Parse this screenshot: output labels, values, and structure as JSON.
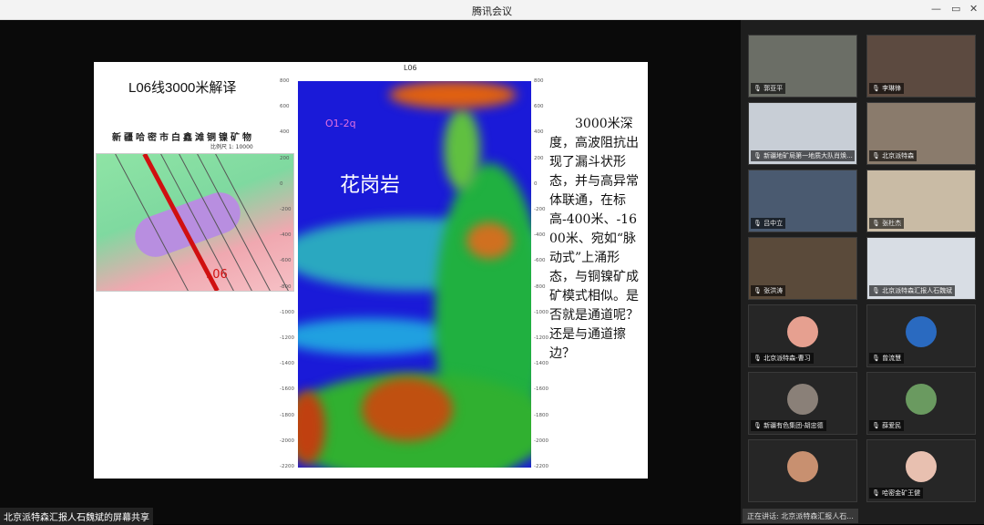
{
  "window": {
    "title": "腾讯会议",
    "controls": [
      "—",
      "▭",
      "✕"
    ]
  },
  "slide": {
    "title": "L06线3000米解译",
    "map_title": "新疆哈密市白鑫滩铜镍矿物",
    "map_scale": "比例尺 1: 10000",
    "map_label": "L06",
    "plot_title": "L06",
    "rock_label": "花岗岩",
    "formation_label": "O1-2q",
    "y_ticks": [
      "800",
      "600",
      "400",
      "200",
      "0",
      "-200",
      "-400",
      "-600",
      "-800",
      "-1000",
      "-1200",
      "-1400",
      "-1600",
      "-1800",
      "-2000",
      "-2200"
    ],
    "description": "3000米深度，高波阻抗出现了漏斗状形态，并与高异常体联通，在标高-400米、-1600米、宛如“脉动式”上涌形态，与铜镍矿成矿模式相似。是否就是通道呢？还是与通道擦边？"
  },
  "participants": [
    {
      "name": "郭亚平",
      "type": "video",
      "bg": "#6b6e66"
    },
    {
      "name": "李琳锋",
      "type": "video",
      "bg": "#5c4a40"
    },
    {
      "name": "新疆地矿局第一地质大队肖焕...",
      "type": "video",
      "bg": "#c8ced6"
    },
    {
      "name": "北京派特森",
      "type": "video",
      "bg": "#8a7b6c"
    },
    {
      "name": "吕中立",
      "type": "video",
      "bg": "#4a5a70"
    },
    {
      "name": "张杜杰",
      "type": "video",
      "bg": "#c9bba5"
    },
    {
      "name": "张洪涛",
      "type": "video",
      "bg": "#5a4a3a"
    },
    {
      "name": "北京派特森汇报人石魏斌",
      "type": "video",
      "bg": "#d8dde4"
    },
    {
      "name": "北京派特森-曹习",
      "type": "avatar",
      "bg": "#e6a090"
    },
    {
      "name": "曾流慧",
      "type": "avatar",
      "bg": "#2a6ac0"
    },
    {
      "name": "新疆有色集团-胡忠德",
      "type": "avatar",
      "bg": "#8a8078"
    },
    {
      "name": "薛爱民",
      "type": "avatar",
      "bg": "#6a9a60"
    },
    {
      "name": "",
      "type": "avatar",
      "bg": "#c89070"
    },
    {
      "name": "哈密金矿王健",
      "type": "avatar",
      "bg": "#e8c0b0"
    }
  ],
  "speaking": "正在讲话: 北京派特森汇报人石...",
  "share_label": "北京派特森汇报人石魏斌的屏幕共享"
}
